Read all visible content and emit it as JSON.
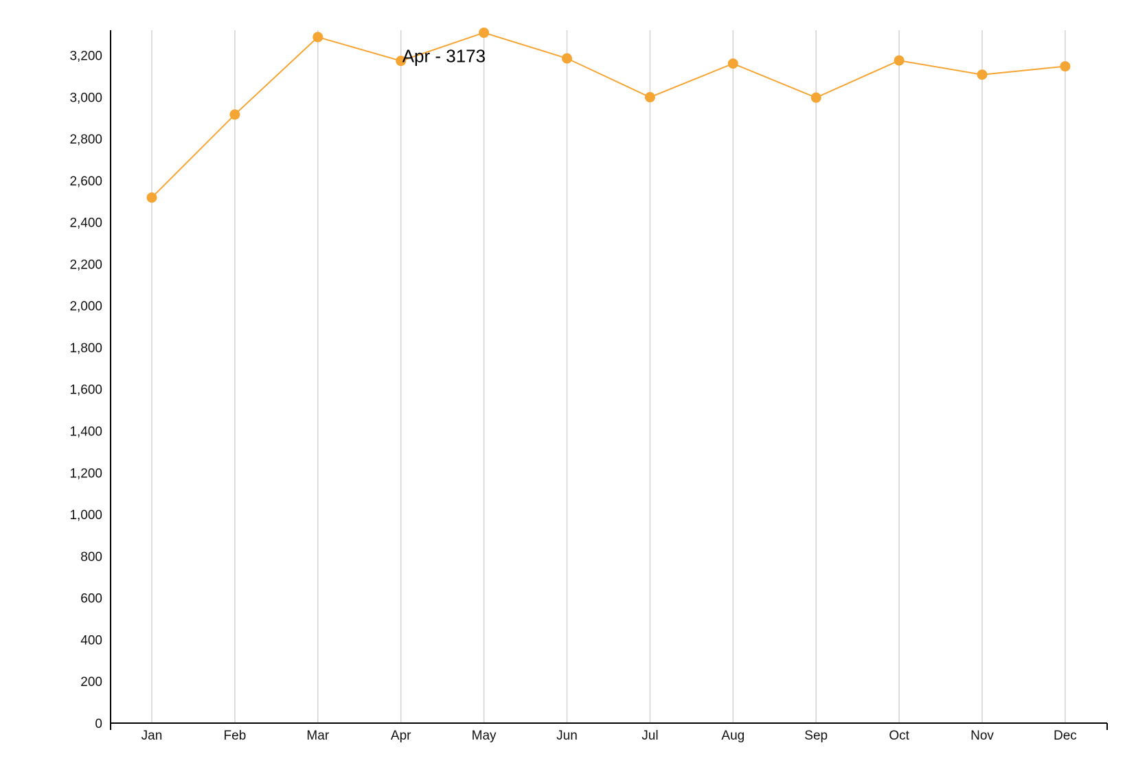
{
  "chart_data": {
    "type": "line",
    "title": "",
    "xlabel": "",
    "ylabel": "",
    "categories": [
      "Jan",
      "Feb",
      "Mar",
      "Apr",
      "May",
      "Jun",
      "Jul",
      "Aug",
      "Sep",
      "Oct",
      "Nov",
      "Dec"
    ],
    "series": [
      {
        "values": [
          2518,
          2916,
          3287,
          3173,
          3308,
          3185,
          2999,
          3160,
          2997,
          3175,
          3107,
          3147
        ]
      }
    ],
    "ylim": [
      0,
      3320
    ],
    "yticks": [
      0,
      200,
      400,
      600,
      800,
      1000,
      1200,
      1400,
      1600,
      1800,
      2000,
      2200,
      2400,
      2600,
      2800,
      3000,
      3200
    ],
    "grid": "vertical",
    "legend": "none",
    "colors": {
      "line": "#f5a534",
      "marker": "#f5a534",
      "grid": "#d3d3d3",
      "axis": "#000000"
    },
    "tooltip": {
      "category": "Apr",
      "text": "Apr - 3173"
    }
  }
}
